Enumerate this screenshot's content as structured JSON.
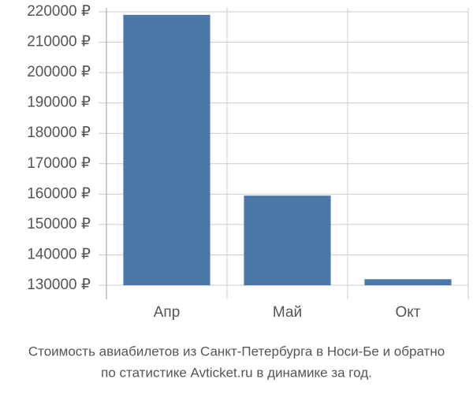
{
  "chart_data": {
    "type": "bar",
    "caption": [
      "Стоимость авиабилетов из Санкт-Петербурга в Носи-Бе и обратно",
      "по статистике Avticket.ru в динамике за год."
    ],
    "categories": [
      "Апр",
      "Май",
      "Окт"
    ],
    "values": [
      219000,
      159500,
      132000
    ],
    "color": "#4c78a8",
    "ylim": [
      130000,
      220000
    ],
    "yticks": [
      {
        "value": 130000,
        "label": "130000 ₽"
      },
      {
        "value": 140000,
        "label": "140000 ₽"
      },
      {
        "value": 150000,
        "label": "150000 ₽"
      },
      {
        "value": 160000,
        "label": "160000 ₽"
      },
      {
        "value": 170000,
        "label": "170000 ₽"
      },
      {
        "value": 180000,
        "label": "180000 ₽"
      },
      {
        "value": 190000,
        "label": "190000 ₽"
      },
      {
        "value": 200000,
        "label": "200000 ₽"
      },
      {
        "value": 210000,
        "label": "210000 ₽"
      },
      {
        "value": 220000,
        "label": "220000 ₽"
      }
    ],
    "grid": true
  }
}
